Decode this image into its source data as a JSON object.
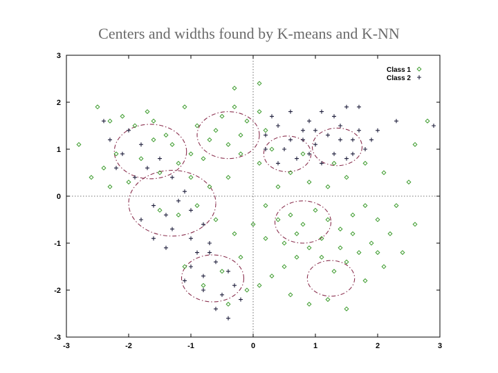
{
  "title": "Centers and widths found by K-means and K-NN",
  "chart_data": {
    "type": "scatter",
    "xlim": [
      -3,
      3
    ],
    "ylim": [
      -3,
      3
    ],
    "x_ticks": [
      -3,
      -2,
      -1,
      0,
      1,
      2,
      3
    ],
    "y_ticks": [
      -3,
      -2,
      -1,
      0,
      1,
      2,
      3
    ],
    "legend_position": "top-right",
    "zero_lines": true,
    "colors": {
      "class1": "#3a9a2a",
      "class2": "#1c1c3a",
      "circle": "#8a2f4e"
    },
    "series": [
      {
        "name": "Class 1",
        "marker": "diamond",
        "points": [
          [
            -2.5,
            1.9
          ],
          [
            -2.3,
            1.6
          ],
          [
            -2.1,
            1.7
          ],
          [
            -1.9,
            1.5
          ],
          [
            -1.7,
            1.8
          ],
          [
            -1.6,
            1.2
          ],
          [
            -1.4,
            1.3
          ],
          [
            -1.8,
            0.8
          ],
          [
            -2.2,
            0.9
          ],
          [
            -2.4,
            0.6
          ],
          [
            -2.6,
            0.4
          ],
          [
            -2.0,
            0.3
          ],
          [
            -1.5,
            0.5
          ],
          [
            -1.2,
            0.7
          ],
          [
            -1.0,
            0.9
          ],
          [
            -1.3,
            1.1
          ],
          [
            -1.6,
            1.6
          ],
          [
            -1.1,
            1.9
          ],
          [
            -0.9,
            1.5
          ],
          [
            -0.7,
            1.2
          ],
          [
            -0.5,
            1.7
          ],
          [
            -0.3,
            1.9
          ],
          [
            -0.6,
            1.4
          ],
          [
            -0.4,
            1.1
          ],
          [
            -0.2,
            1.3
          ],
          [
            -0.1,
            1.6
          ],
          [
            0.1,
            1.8
          ],
          [
            0.2,
            1.4
          ],
          [
            0.3,
            1.0
          ],
          [
            0.1,
            0.7
          ],
          [
            -0.2,
            0.9
          ],
          [
            -0.8,
            0.8
          ],
          [
            -1.0,
            0.4
          ],
          [
            -0.7,
            0.2
          ],
          [
            -0.9,
            -0.2
          ],
          [
            -1.2,
            -0.4
          ],
          [
            -1.5,
            -0.3
          ],
          [
            -0.4,
            0.4
          ],
          [
            -0.6,
            -0.5
          ],
          [
            -0.3,
            -0.8
          ],
          [
            0.0,
            -0.6
          ],
          [
            0.2,
            -0.9
          ],
          [
            0.4,
            -0.5
          ],
          [
            0.6,
            -0.4
          ],
          [
            0.8,
            -0.6
          ],
          [
            1.0,
            -0.3
          ],
          [
            1.2,
            -0.5
          ],
          [
            1.4,
            -0.7
          ],
          [
            1.6,
            -0.4
          ],
          [
            1.8,
            -0.2
          ],
          [
            2.0,
            -0.5
          ],
          [
            2.2,
            -0.8
          ],
          [
            1.9,
            -1.0
          ],
          [
            1.7,
            -1.2
          ],
          [
            1.5,
            -1.4
          ],
          [
            1.3,
            -1.6
          ],
          [
            1.1,
            -1.3
          ],
          [
            0.9,
            -1.1
          ],
          [
            0.7,
            -1.3
          ],
          [
            0.5,
            -1.5
          ],
          [
            0.3,
            -1.7
          ],
          [
            0.1,
            -1.9
          ],
          [
            -0.1,
            -2.0
          ],
          [
            0.6,
            -2.1
          ],
          [
            0.9,
            -2.3
          ],
          [
            1.2,
            -2.2
          ],
          [
            1.5,
            -2.4
          ],
          [
            1.8,
            -1.8
          ],
          [
            2.1,
            -1.5
          ],
          [
            2.4,
            -1.2
          ],
          [
            2.6,
            -0.6
          ],
          [
            2.3,
            -0.2
          ],
          [
            2.5,
            0.3
          ],
          [
            2.1,
            0.5
          ],
          [
            1.8,
            0.7
          ],
          [
            1.5,
            0.4
          ],
          [
            1.2,
            0.2
          ],
          [
            0.9,
            0.3
          ],
          [
            0.6,
            0.5
          ],
          [
            0.4,
            0.2
          ],
          [
            0.2,
            -0.2
          ],
          [
            -0.2,
            -1.3
          ],
          [
            -0.5,
            -1.6
          ],
          [
            -0.8,
            -1.9
          ],
          [
            -1.1,
            -1.5
          ],
          [
            -0.4,
            -2.3
          ],
          [
            0.7,
            -0.8
          ],
          [
            1.1,
            -0.9
          ],
          [
            1.4,
            -1.1
          ],
          [
            0.5,
            -1.0
          ],
          [
            1.6,
            -0.8
          ],
          [
            2.0,
            -1.2
          ],
          [
            0.8,
            0.9
          ],
          [
            1.3,
            0.7
          ],
          [
            2.6,
            1.1
          ],
          [
            2.8,
            1.6
          ],
          [
            -2.8,
            1.1
          ],
          [
            -2.3,
            0.2
          ],
          [
            -0.3,
            2.3
          ],
          [
            0.1,
            2.4
          ]
        ]
      },
      {
        "name": "Class 2",
        "marker": "cross",
        "points": [
          [
            -2.3,
            1.2
          ],
          [
            -2.0,
            1.4
          ],
          [
            -1.8,
            1.1
          ],
          [
            -2.1,
            0.9
          ],
          [
            -1.7,
            0.6
          ],
          [
            -1.5,
            0.8
          ],
          [
            -1.3,
            0.4
          ],
          [
            -2.4,
            1.6
          ],
          [
            -1.9,
            0.4
          ],
          [
            -2.2,
            0.6
          ],
          [
            -1.6,
            -0.2
          ],
          [
            -1.4,
            -0.4
          ],
          [
            -1.2,
            -0.1
          ],
          [
            -1.0,
            -0.3
          ],
          [
            -0.8,
            -0.6
          ],
          [
            -1.3,
            -0.7
          ],
          [
            -1.6,
            -0.9
          ],
          [
            -1.0,
            -0.9
          ],
          [
            -0.7,
            -1.0
          ],
          [
            -1.8,
            -0.5
          ],
          [
            -1.1,
            0.1
          ],
          [
            -0.9,
            -1.2
          ],
          [
            -1.4,
            -1.1
          ],
          [
            -1.0,
            -1.5
          ],
          [
            -0.8,
            -1.7
          ],
          [
            -0.6,
            -1.4
          ],
          [
            -0.4,
            -1.6
          ],
          [
            -0.3,
            -1.9
          ],
          [
            -0.5,
            -2.1
          ],
          [
            -0.8,
            -2.0
          ],
          [
            -1.1,
            -1.8
          ],
          [
            -0.6,
            -2.4
          ],
          [
            -0.2,
            -2.2
          ],
          [
            -0.7,
            -1.2
          ],
          [
            -0.4,
            -2.6
          ],
          [
            0.2,
            1.3
          ],
          [
            0.4,
            1.5
          ],
          [
            0.6,
            1.2
          ],
          [
            0.8,
            1.4
          ],
          [
            1.0,
            1.1
          ],
          [
            1.2,
            1.3
          ],
          [
            1.4,
            1.5
          ],
          [
            1.6,
            1.2
          ],
          [
            1.8,
            1.0
          ],
          [
            0.5,
            1.0
          ],
          [
            0.7,
            0.8
          ],
          [
            0.9,
            0.9
          ],
          [
            1.1,
            0.7
          ],
          [
            1.3,
            0.9
          ],
          [
            1.5,
            0.8
          ],
          [
            1.7,
            1.4
          ],
          [
            1.9,
            1.2
          ],
          [
            0.3,
            1.7
          ],
          [
            0.6,
            1.8
          ],
          [
            0.9,
            1.6
          ],
          [
            1.1,
            1.8
          ],
          [
            1.3,
            1.7
          ],
          [
            1.5,
            1.9
          ],
          [
            0.8,
            1.2
          ],
          [
            0.2,
            1.0
          ],
          [
            1.0,
            1.4
          ],
          [
            1.4,
            1.2
          ],
          [
            0.4,
            0.7
          ],
          [
            1.6,
            0.9
          ],
          [
            2.0,
            1.4
          ],
          [
            2.3,
            1.6
          ],
          [
            2.9,
            1.5
          ],
          [
            1.7,
            1.9
          ]
        ]
      }
    ],
    "circles": [
      {
        "cx": -1.65,
        "cy": 0.95,
        "r": 0.58
      },
      {
        "cx": -1.3,
        "cy": -0.15,
        "r": 0.7
      },
      {
        "cx": -0.4,
        "cy": 1.3,
        "r": 0.5
      },
      {
        "cx": 0.55,
        "cy": 0.9,
        "r": 0.38
      },
      {
        "cx": 1.35,
        "cy": 1.05,
        "r": 0.4
      },
      {
        "cx": 0.8,
        "cy": -0.55,
        "r": 0.45
      },
      {
        "cx": 1.25,
        "cy": -1.75,
        "r": 0.38
      },
      {
        "cx": -0.65,
        "cy": -1.75,
        "r": 0.5
      }
    ]
  }
}
